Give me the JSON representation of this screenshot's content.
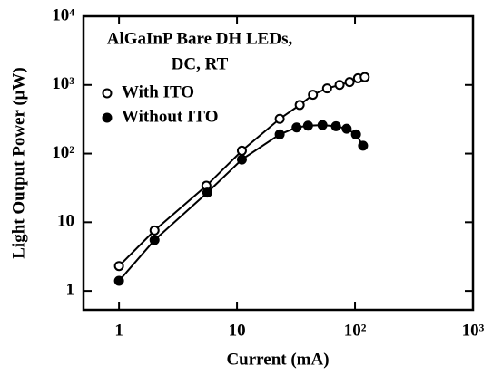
{
  "chart_data": {
    "type": "line",
    "title_lines": [
      "AlGaInP Bare DH LEDs,",
      "DC, RT"
    ],
    "xlabel": "Current (mA)",
    "ylabel": "Light Output Power (μW)",
    "xscale": "log",
    "yscale": "log",
    "xlim": [
      0.5,
      1000
    ],
    "ylim": [
      0.53,
      10000
    ],
    "xticks": [
      1,
      10,
      {
        "value": 100,
        "label": "10²"
      },
      {
        "value": 1000,
        "label": "10³"
      }
    ],
    "yticks": [
      1,
      10,
      {
        "value": 100,
        "label": "10²"
      },
      {
        "value": 1000,
        "label": "10³"
      },
      {
        "value": 10000,
        "label": "10⁴"
      }
    ],
    "legend": "upper left",
    "series": [
      {
        "name": "With ITO",
        "color": "#000000",
        "marker_fill": "#ffffff",
        "x": [
          1,
          2,
          5.5,
          11,
          23,
          34,
          44,
          58,
          74,
          90,
          106,
          121
        ],
        "values": [
          2.3,
          7.6,
          34,
          110,
          320,
          510,
          720,
          890,
          1000,
          1100,
          1250,
          1300
        ]
      },
      {
        "name": "Without ITO",
        "color": "#000000",
        "marker_fill": "#000000",
        "x": [
          1,
          2,
          5.6,
          11,
          23,
          32,
          40,
          53,
          69,
          85,
          102,
          117
        ],
        "values": [
          1.4,
          5.5,
          27,
          82,
          190,
          240,
          255,
          260,
          250,
          230,
          190,
          130
        ]
      }
    ]
  }
}
